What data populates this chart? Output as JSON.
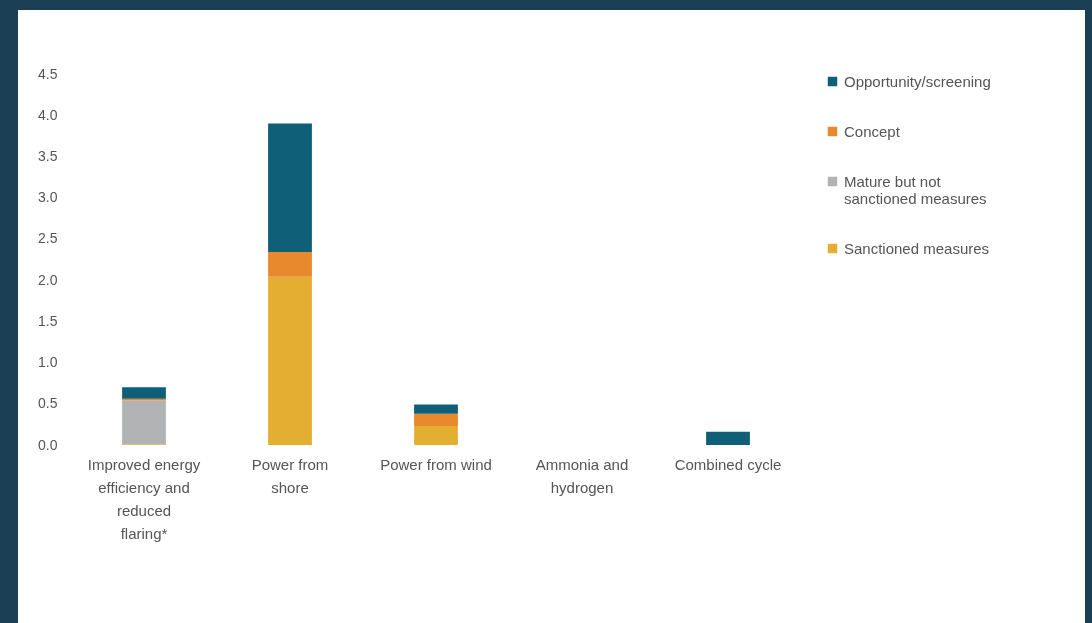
{
  "chart_data": {
    "type": "bar",
    "stacked": true,
    "categories": [
      "Improved energy efficiency and reduced flaring*",
      "Power from shore",
      "Power from wind",
      "Ammonia and hydrogen",
      "Combined cycle"
    ],
    "series": [
      {
        "name": "Sanctioned measures",
        "color": "#e3ae32",
        "values": [
          0.01,
          2.04,
          0.23,
          0,
          0
        ]
      },
      {
        "name": "Mature but not sanctioned measures",
        "color": "#b1b3b4",
        "values": [
          0.53,
          0,
          0,
          0,
          0
        ]
      },
      {
        "name": "Concept",
        "color": "#e8892e",
        "values": [
          0.02,
          0.3,
          0.15,
          0,
          0
        ]
      },
      {
        "name": "Opportunity/screening",
        "color": "#0f5f78",
        "values": [
          0.14,
          1.56,
          0.11,
          0,
          0.16
        ]
      }
    ],
    "ylim": [
      0,
      4.5
    ],
    "yticks": [
      {
        "value": 0,
        "label": "0.0"
      },
      {
        "value": 0.5,
        "label": "0.5"
      },
      {
        "value": 1,
        "label": "1.0"
      },
      {
        "value": 1.5,
        "label": "1.5"
      },
      {
        "value": 2,
        "label": "2.0"
      },
      {
        "value": 2.5,
        "label": "2.5"
      },
      {
        "value": 3,
        "label": "3.0"
      },
      {
        "value": 3.5,
        "label": "3.5"
      },
      {
        "value": 4,
        "label": "4.0"
      },
      {
        "value": 4.5,
        "label": "4.5"
      }
    ],
    "grid": false,
    "legend": "right"
  }
}
